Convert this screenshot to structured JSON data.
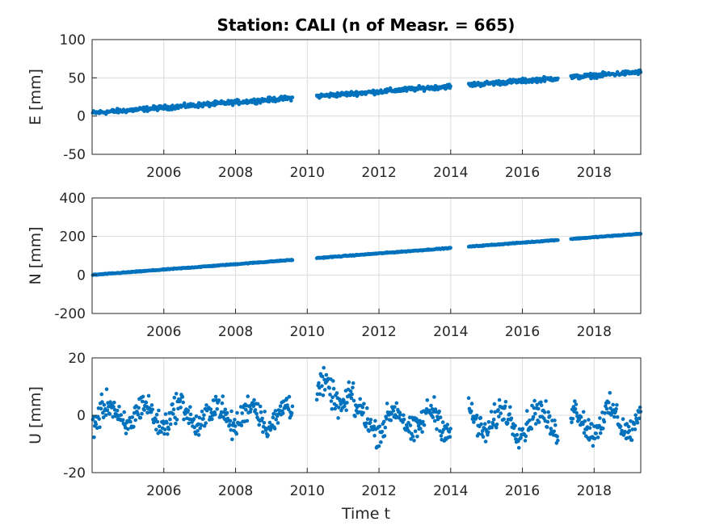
{
  "figure": {
    "title": "Station: CALI (n of Measr. = 665)",
    "xlabel": "Time t"
  },
  "chart_data": [
    {
      "type": "scatter",
      "ylabel": "E [mm]",
      "xlim": [
        2004.0,
        2019.3
      ],
      "ylim": [
        -50,
        100
      ],
      "xticks": [
        2006,
        2008,
        2010,
        2012,
        2014,
        2016,
        2018
      ],
      "yticks": [
        -50,
        0,
        50,
        100
      ],
      "grid": true,
      "color": "#0072BD",
      "trend": {
        "start": 2004.0,
        "start_value": 4,
        "slope": 3.5
      },
      "noise_amplitude": 2.5,
      "gaps": [
        [
          2009.6,
          2010.25
        ],
        [
          2014.0,
          2014.5
        ],
        [
          2017.0,
          2017.35
        ]
      ]
    },
    {
      "type": "scatter",
      "ylabel": "N [mm]",
      "xlim": [
        2004.0,
        2019.3
      ],
      "ylim": [
        -200,
        400
      ],
      "xticks": [
        2006,
        2008,
        2010,
        2012,
        2014,
        2016,
        2018
      ],
      "yticks": [
        -200,
        0,
        200,
        400
      ],
      "grid": true,
      "color": "#0072BD",
      "trend": {
        "start": 2004.0,
        "start_value": 0,
        "slope": 14
      },
      "noise_amplitude": 2.0,
      "gaps": [
        [
          2009.6,
          2010.25
        ],
        [
          2014.0,
          2014.5
        ],
        [
          2017.0,
          2017.35
        ]
      ]
    },
    {
      "type": "scatter",
      "ylabel": "U [mm]",
      "xlim": [
        2004.0,
        2019.3
      ],
      "ylim": [
        -20,
        20
      ],
      "xticks": [
        2006,
        2008,
        2010,
        2012,
        2014,
        2016,
        2018
      ],
      "yticks": [
        -20,
        0,
        20
      ],
      "grid": true,
      "color": "#0072BD",
      "trend": {
        "start": 2004.0,
        "start_value": 0,
        "slope": 0
      },
      "noise_amplitude": 4.0,
      "gaps": [
        [
          2009.6,
          2010.25
        ],
        [
          2014.0,
          2014.5
        ],
        [
          2017.0,
          2017.35
        ]
      ]
    }
  ]
}
